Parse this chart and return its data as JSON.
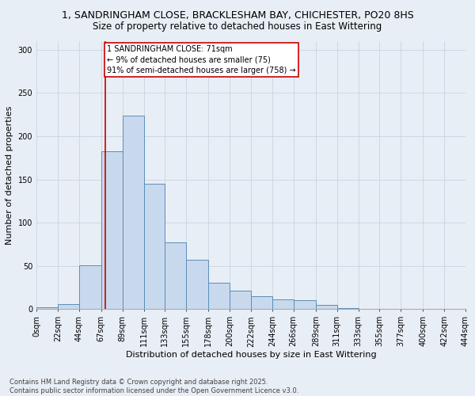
{
  "title1": "1, SANDRINGHAM CLOSE, BRACKLESHAM BAY, CHICHESTER, PO20 8HS",
  "title2": "Size of property relative to detached houses in East Wittering",
  "xlabel": "Distribution of detached houses by size in East Wittering",
  "ylabel": "Number of detached properties",
  "bin_labels": [
    "0sqm",
    "22sqm",
    "44sqm",
    "67sqm",
    "89sqm",
    "111sqm",
    "133sqm",
    "155sqm",
    "178sqm",
    "200sqm",
    "222sqm",
    "244sqm",
    "266sqm",
    "289sqm",
    "311sqm",
    "333sqm",
    "355sqm",
    "377sqm",
    "400sqm",
    "422sqm",
    "444sqm"
  ],
  "bin_edges": [
    0,
    22,
    44,
    67,
    89,
    111,
    133,
    155,
    178,
    200,
    222,
    244,
    266,
    289,
    311,
    333,
    355,
    377,
    400,
    422,
    444
  ],
  "heights": [
    2,
    6,
    51,
    183,
    224,
    145,
    77,
    57,
    31,
    21,
    15,
    11,
    10,
    5,
    1,
    0,
    0,
    0,
    0,
    0
  ],
  "bar_color": "#c8d9ed",
  "bar_edge_color": "#5b8db8",
  "grid_color": "#c8d4e0",
  "property_line_x": 71,
  "annotation_text": "1 SANDRINGHAM CLOSE: 71sqm\n← 9% of detached houses are smaller (75)\n91% of semi-detached houses are larger (758) →",
  "annotation_box_color": "#ffffff",
  "annotation_box_edge": "#cc0000",
  "red_line_color": "#cc0000",
  "footer1": "Contains HM Land Registry data © Crown copyright and database right 2025.",
  "footer2": "Contains public sector information licensed under the Open Government Licence v3.0.",
  "ylim_max": 310,
  "yticks": [
    0,
    50,
    100,
    150,
    200,
    250,
    300
  ],
  "title1_fontsize": 9,
  "title2_fontsize": 8.5,
  "axis_label_fontsize": 8,
  "tick_fontsize": 7,
  "annotation_fontsize": 7,
  "footer_fontsize": 6,
  "background_color": "#e8eef5"
}
